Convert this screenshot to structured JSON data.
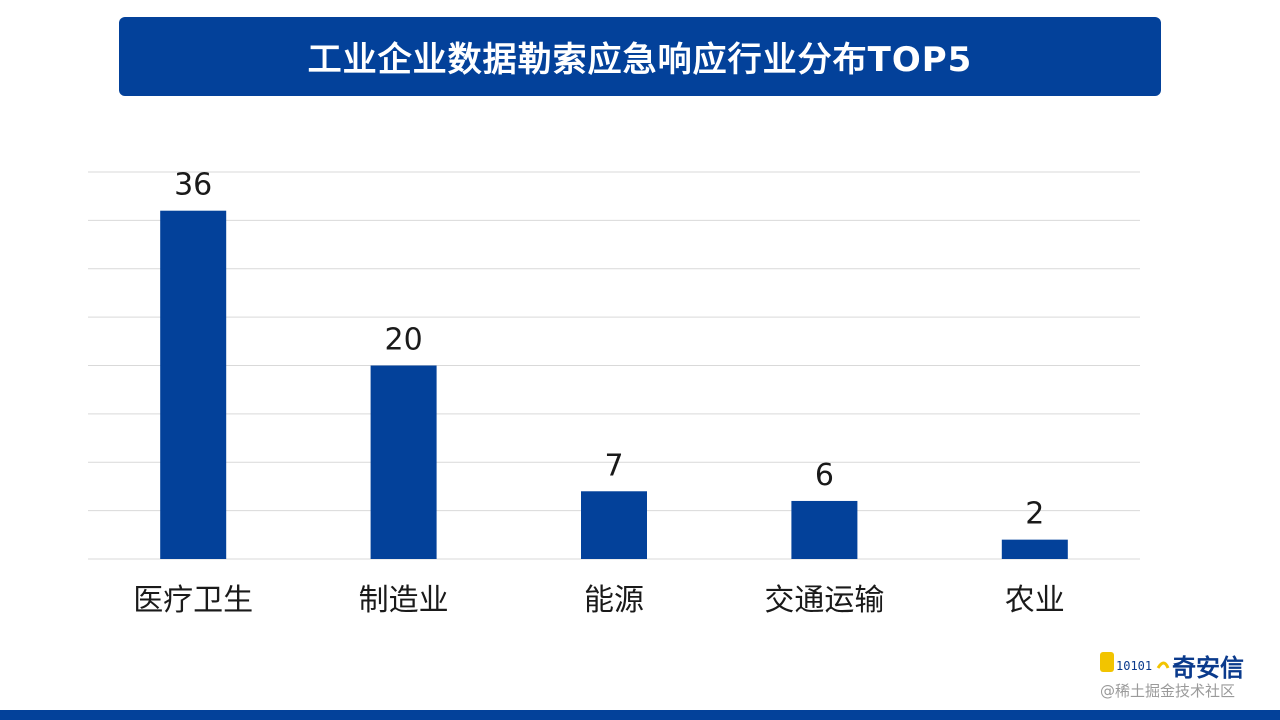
{
  "header": {
    "title": "工业企业数据勒索应急响应行业分布TOP5"
  },
  "chart_data": {
    "type": "bar",
    "title": "工业企业数据勒索应急响应行业分布TOP5",
    "categories": [
      "医疗卫生",
      "制造业",
      "能源",
      "交通运输",
      "农业"
    ],
    "values": [
      36,
      20,
      7,
      6,
      2
    ],
    "ylim": [
      0,
      40
    ],
    "grid": true,
    "bar_color": "#03419a"
  },
  "branding": {
    "logo_text": "奇安信",
    "logo_color": "#0a3a8c",
    "logo_mark_color": "#f2c400",
    "watermark": "@稀土掘金技术社区"
  },
  "colors": {
    "accent": "#03419a",
    "grid": "#d9d9d9"
  }
}
